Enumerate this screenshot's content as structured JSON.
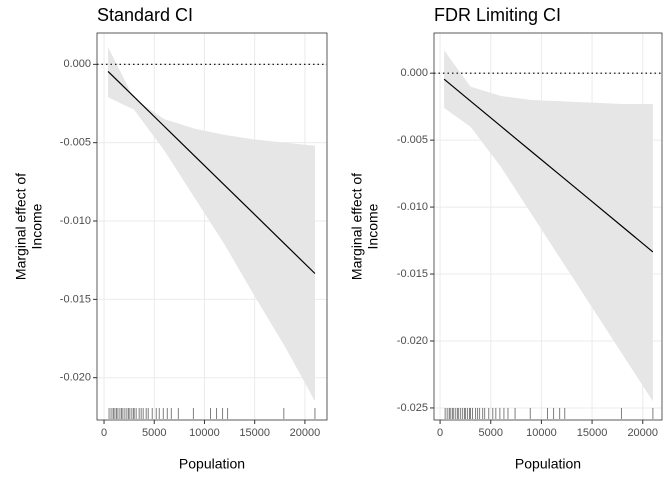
{
  "chart_data": [
    {
      "type": "line",
      "title": "Standard CI",
      "xlabel": "Population",
      "ylabel_lines": [
        "Marginal effect of",
        "Income"
      ],
      "x": [
        400,
        3000,
        6000,
        9000,
        12000,
        15000,
        18000,
        21000
      ],
      "values": [
        -0.00045,
        -0.00208,
        -0.00396,
        -0.00584,
        -0.00771,
        -0.00959,
        -0.01147,
        -0.01335
      ],
      "ci_upper": [
        0.0011,
        -0.0022,
        -0.0035,
        -0.0041,
        -0.0045,
        -0.0048,
        -0.005,
        -0.0052
      ],
      "ci_lower": [
        -0.0021,
        -0.0029,
        -0.0055,
        -0.0085,
        -0.0115,
        -0.0148,
        -0.018,
        -0.0215
      ],
      "color": "#000000",
      "band_color": "#e6e6e6",
      "hline": 0,
      "rug": [
        500,
        700,
        900,
        1000,
        1200,
        1300,
        1500,
        1700,
        1800,
        2000,
        2200,
        2400,
        2500,
        2700,
        2900,
        3000,
        3200,
        3500,
        3700,
        3900,
        4200,
        4400,
        4800,
        5200,
        5500,
        5900,
        6300,
        6700,
        7400,
        8900,
        10600,
        11200,
        11800,
        12300,
        17900,
        21000
      ],
      "xlim": [
        -700,
        22200
      ],
      "xticks": [
        0,
        5000,
        10000,
        15000,
        20000
      ],
      "ylim": [
        -0.0227,
        0.002
      ],
      "yticks": [
        {
          "value": -0.02,
          "label": "-0.020"
        },
        {
          "value": -0.015,
          "label": "-0.015"
        },
        {
          "value": -0.01,
          "label": "-0.010"
        },
        {
          "value": -0.005,
          "label": "-0.005"
        },
        {
          "value": 0,
          "label": "0.000"
        }
      ],
      "grid": true
    },
    {
      "type": "line",
      "title": "FDR Limiting CI",
      "xlabel": "Population",
      "ylabel_lines": [
        "Marginal effect of",
        "Income"
      ],
      "x": [
        400,
        3000,
        6000,
        9000,
        12000,
        15000,
        18000,
        21000
      ],
      "values": [
        -0.00045,
        -0.00208,
        -0.00396,
        -0.00584,
        -0.00771,
        -0.00959,
        -0.01147,
        -0.01335
      ],
      "ci_upper": [
        0.0017,
        -0.001,
        -0.0017,
        -0.002,
        -0.0021,
        -0.0022,
        -0.0023,
        -0.0023
      ],
      "ci_lower": [
        -0.0026,
        -0.004,
        -0.007,
        -0.0105,
        -0.014,
        -0.0175,
        -0.021,
        -0.0245
      ],
      "color": "#000000",
      "band_color": "#e6e6e6",
      "hline": 0,
      "rug": [
        500,
        700,
        900,
        1000,
        1200,
        1300,
        1500,
        1700,
        1800,
        2000,
        2200,
        2400,
        2500,
        2700,
        2900,
        3000,
        3200,
        3500,
        3700,
        3900,
        4200,
        4400,
        4800,
        5200,
        5500,
        5900,
        6300,
        6700,
        7400,
        8900,
        10600,
        11200,
        11800,
        12300,
        17900,
        21000
      ],
      "xlim": [
        -600,
        21900
      ],
      "xticks": [
        0,
        5000,
        10000,
        15000,
        20000
      ],
      "ylim": [
        -0.0259,
        0.003
      ],
      "yticks": [
        {
          "value": -0.025,
          "label": "-0.025"
        },
        {
          "value": -0.02,
          "label": "-0.020"
        },
        {
          "value": -0.015,
          "label": "-0.015"
        },
        {
          "value": -0.01,
          "label": "-0.010"
        },
        {
          "value": -0.005,
          "label": "-0.005"
        },
        {
          "value": 0,
          "label": "0.000"
        }
      ],
      "grid": true
    }
  ]
}
